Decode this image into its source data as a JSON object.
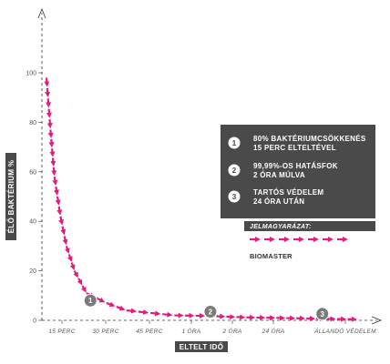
{
  "chart_data": {
    "type": "line",
    "xlabel": "ELTELT IDŐ",
    "ylabel": "ÉLŐ BAKTÉRIUM %",
    "yticks": [
      0,
      20,
      40,
      60,
      80,
      100
    ],
    "ylim": [
      0,
      100
    ],
    "xticks": [
      "15 PERC",
      "30 PERC",
      "45 PERC",
      "1 ÓRA",
      "2 ÓRA",
      "24 ÓRA",
      "ÁLLANDÓ VÉDELEM"
    ],
    "series": [
      {
        "name": "BIOMASTER",
        "color": "#e6197d",
        "style": "dashed-arrows",
        "points": [
          {
            "x": 0,
            "y": 98
          },
          {
            "x": 0.1,
            "y": 77
          },
          {
            "x": 0.2,
            "y": 58
          },
          {
            "x": 0.35,
            "y": 42
          },
          {
            "x": 0.5,
            "y": 30
          },
          {
            "x": 0.7,
            "y": 20
          },
          {
            "x": 1,
            "y": 11
          },
          {
            "x": 1.5,
            "y": 7
          },
          {
            "x": 2,
            "y": 4
          },
          {
            "x": 2.6,
            "y": 3
          },
          {
            "x": 3.2,
            "y": 2
          },
          {
            "x": 4,
            "y": 1.8
          },
          {
            "x": 5,
            "y": 1.2
          },
          {
            "x": 6,
            "y": 0.9
          },
          {
            "x": 7,
            "y": 0.6
          },
          {
            "x": 7.8,
            "y": 0.4
          }
        ]
      }
    ],
    "markers": [
      {
        "label": "1",
        "x": 1.1,
        "y": 8
      },
      {
        "label": "2",
        "x": 4.1,
        "y": 3.5
      },
      {
        "label": "3",
        "x": 6.9,
        "y": 2.6
      }
    ],
    "info_box": {
      "items": [
        {
          "num": "1",
          "line1": "80% BAKTÉRIUMCSÖKKENÉS",
          "line2": "15 PERC ELTELTÉVEL"
        },
        {
          "num": "2",
          "line1": "99,99%-OS HATÁSFOK",
          "line2": "2 ÓRA MÚLVA"
        },
        {
          "num": "3",
          "line1": "TARTÓS VÉDELEM",
          "line2": "24 ÓRA UTÁN"
        }
      ]
    },
    "legend": {
      "title": "JELMAGYARÁZAT:",
      "series_label": "BIOMASTER",
      "placement": "right"
    },
    "colors": {
      "accent": "#e6197d",
      "box": "#4a4a4a",
      "marker": "#7a7a7a",
      "axis": "#333333"
    }
  }
}
